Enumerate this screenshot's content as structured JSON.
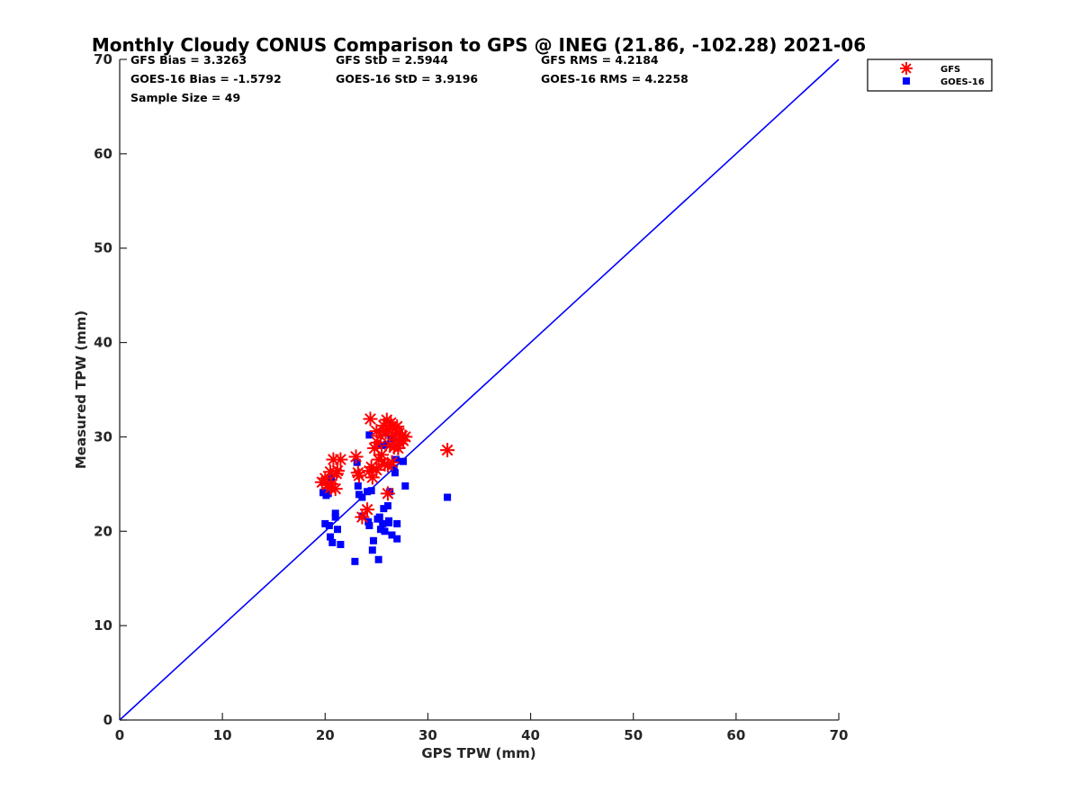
{
  "chart_data": {
    "type": "scatter",
    "title": "Monthly Cloudy CONUS Comparison to GPS @ INEG (21.86, -102.28) 2021-06",
    "xlabel": "GPS TPW (mm)",
    "ylabel": "Measured TPW (mm)",
    "xlim": [
      0,
      70
    ],
    "ylim": [
      0,
      70
    ],
    "xticks": [
      "0",
      "10",
      "20",
      "30",
      "40",
      "50",
      "60",
      "70"
    ],
    "yticks": [
      "0",
      "10",
      "20",
      "30",
      "40",
      "50",
      "60",
      "70"
    ],
    "stats": [
      [
        "GFS Bias = 3.3263",
        "GFS StD = 2.5944",
        "GFS RMS = 4.2184"
      ],
      [
        "GOES-16 Bias = -1.5792",
        "GOES-16 StD = 3.9196",
        "GOES-16 RMS = 4.2258"
      ],
      [
        "Sample Size = 49"
      ]
    ],
    "reference_line": {
      "x": [
        0,
        70
      ],
      "y": [
        0,
        70
      ],
      "color": "#0000ff"
    },
    "legend_position": "top-right outside",
    "series": [
      {
        "name": "GFS",
        "marker": "asterisk",
        "color": "#ff0000",
        "points": [
          [
            19.7,
            25.2
          ],
          [
            20.0,
            25.6
          ],
          [
            20.2,
            24.9
          ],
          [
            20.5,
            26.3
          ],
          [
            20.5,
            24.6
          ],
          [
            20.8,
            27.6
          ],
          [
            21.0,
            24.5
          ],
          [
            21.1,
            26.1
          ],
          [
            21.2,
            26.4
          ],
          [
            21.5,
            27.6
          ],
          [
            23.0,
            27.9
          ],
          [
            23.2,
            26.2
          ],
          [
            23.3,
            25.9
          ],
          [
            23.6,
            21.5
          ],
          [
            24.1,
            22.3
          ],
          [
            24.3,
            26.4
          ],
          [
            24.4,
            31.9
          ],
          [
            24.5,
            26.8
          ],
          [
            24.6,
            25.7
          ],
          [
            24.8,
            28.8
          ],
          [
            25.0,
            30.6
          ],
          [
            25.1,
            29.4
          ],
          [
            25.2,
            27.6
          ],
          [
            25.4,
            30.1
          ],
          [
            25.5,
            28.1
          ],
          [
            25.7,
            31.2
          ],
          [
            25.8,
            27.1
          ],
          [
            25.9,
            30.5
          ],
          [
            26.0,
            31.8
          ],
          [
            26.1,
            24.0
          ],
          [
            26.1,
            27.0
          ],
          [
            26.2,
            30.8
          ],
          [
            26.3,
            29.1
          ],
          [
            26.4,
            31.5
          ],
          [
            26.5,
            27.3
          ],
          [
            26.6,
            30.2
          ],
          [
            26.7,
            28.9
          ],
          [
            26.8,
            30.9
          ],
          [
            26.9,
            29.7
          ],
          [
            27.0,
            31.1
          ],
          [
            27.1,
            28.8
          ],
          [
            27.2,
            30.4
          ],
          [
            27.3,
            29.3
          ],
          [
            27.5,
            30.1
          ],
          [
            27.6,
            29.6
          ],
          [
            27.8,
            30.0
          ],
          [
            25.0,
            26.5
          ],
          [
            20.6,
            25.0
          ],
          [
            31.9,
            28.6
          ]
        ]
      },
      {
        "name": "GOES-16",
        "marker": "square",
        "color": "#0000ff",
        "points": [
          [
            19.8,
            24.1
          ],
          [
            20.0,
            20.8
          ],
          [
            20.1,
            23.8
          ],
          [
            20.3,
            24.0
          ],
          [
            20.4,
            20.6
          ],
          [
            20.5,
            19.4
          ],
          [
            20.6,
            25.6
          ],
          [
            20.7,
            18.8
          ],
          [
            21.0,
            21.9
          ],
          [
            21.0,
            21.5
          ],
          [
            21.2,
            20.2
          ],
          [
            21.5,
            18.6
          ],
          [
            22.9,
            16.8
          ],
          [
            23.1,
            27.3
          ],
          [
            23.2,
            24.8
          ],
          [
            23.3,
            23.9
          ],
          [
            23.6,
            23.6
          ],
          [
            23.6,
            21.6
          ],
          [
            24.1,
            24.2
          ],
          [
            24.2,
            21.0
          ],
          [
            24.3,
            30.2
          ],
          [
            24.3,
            20.6
          ],
          [
            24.5,
            24.3
          ],
          [
            24.6,
            18.0
          ],
          [
            24.7,
            19.0
          ],
          [
            25.2,
            17.0
          ],
          [
            25.3,
            21.5
          ],
          [
            25.4,
            20.2
          ],
          [
            25.5,
            29.1
          ],
          [
            25.6,
            20.8
          ],
          [
            25.7,
            22.4
          ],
          [
            25.8,
            20.0
          ],
          [
            25.9,
            30.4
          ],
          [
            26.0,
            29.2
          ],
          [
            26.1,
            22.7
          ],
          [
            26.2,
            20.9
          ],
          [
            26.3,
            24.2
          ],
          [
            26.4,
            29.8
          ],
          [
            26.5,
            19.6
          ],
          [
            26.7,
            26.7
          ],
          [
            26.8,
            26.2
          ],
          [
            26.9,
            27.6
          ],
          [
            27.0,
            20.8
          ],
          [
            27.0,
            19.2
          ],
          [
            27.6,
            27.4
          ],
          [
            27.8,
            24.8
          ],
          [
            31.9,
            23.6
          ],
          [
            25.1,
            21.3
          ],
          [
            26.2,
            21.1
          ]
        ]
      }
    ]
  }
}
